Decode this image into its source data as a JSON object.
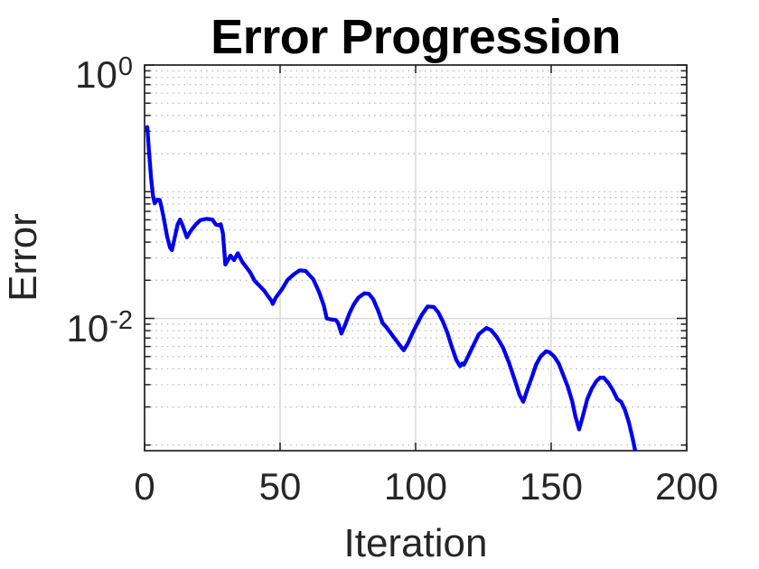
{
  "title": "Error Progression",
  "chart_data": {
    "type": "line",
    "title": "Error Progression",
    "xlabel": "Iteration",
    "ylabel": "Error",
    "yscale": "log",
    "xlim": [
      0,
      200
    ],
    "ylim": [
      0.000903,
      1.0
    ],
    "x_ticks": [
      {
        "value": 0,
        "label": "0"
      },
      {
        "value": 50,
        "label": "50"
      },
      {
        "value": 100,
        "label": "100"
      },
      {
        "value": 150,
        "label": "150"
      },
      {
        "value": 200,
        "label": "200"
      }
    ],
    "y_ticks": [
      {
        "value": 1,
        "base": "10",
        "exponent": "0"
      },
      {
        "value": 0.01,
        "base": "10",
        "exponent": "-2"
      }
    ],
    "x_major_grid": [
      50,
      100,
      150
    ],
    "y_major_grid": [
      0.01
    ],
    "minor_grid": true,
    "legend": null,
    "colors": {
      "line": "#0000EE",
      "axis": "#1f1f1f",
      "major_grid": "#d6d6d6",
      "minor_grid": "#b9b9b9",
      "title_text": "#000000",
      "label_text": "#262626"
    },
    "series": [
      {
        "name": "error",
        "color": "#0000EE",
        "line_width": 4.3,
        "points": [
          [
            1,
            0.324
          ],
          [
            1.7,
            0.2
          ],
          [
            2.4,
            0.129
          ],
          [
            3.1,
            0.093
          ],
          [
            3.7,
            0.081
          ],
          [
            4.7,
            0.0865
          ],
          [
            5.6,
            0.086
          ],
          [
            6.3,
            0.0747
          ],
          [
            7.2,
            0.06
          ],
          [
            8.3,
            0.0444
          ],
          [
            9.4,
            0.0362
          ],
          [
            10.1,
            0.0346
          ],
          [
            11.1,
            0.0433
          ],
          [
            12.2,
            0.0552
          ],
          [
            13.1,
            0.0603
          ],
          [
            14.1,
            0.0536
          ],
          [
            15.6,
            0.0437
          ],
          [
            17.2,
            0.0497
          ],
          [
            18.9,
            0.0552
          ],
          [
            20.6,
            0.0597
          ],
          [
            22.8,
            0.0611
          ],
          [
            25,
            0.0603
          ],
          [
            26.3,
            0.0551
          ],
          [
            27.2,
            0.0543
          ],
          [
            28.1,
            0.0553
          ],
          [
            28.9,
            0.047
          ],
          [
            29.8,
            0.0266
          ],
          [
            31.7,
            0.0313
          ],
          [
            33,
            0.0289
          ],
          [
            34.4,
            0.0327
          ],
          [
            36.1,
            0.0278
          ],
          [
            37.4,
            0.0256
          ],
          [
            38.9,
            0.0232
          ],
          [
            40.6,
            0.0198
          ],
          [
            42.4,
            0.0181
          ],
          [
            44.1,
            0.0166
          ],
          [
            45.6,
            0.0149
          ],
          [
            46.8,
            0.0138
          ],
          [
            47.3,
            0.013
          ],
          [
            48.4,
            0.0146
          ],
          [
            50.6,
            0.0169
          ],
          [
            52.8,
            0.0202
          ],
          [
            55,
            0.0222
          ],
          [
            57.2,
            0.0239
          ],
          [
            59.4,
            0.0237
          ],
          [
            62.2,
            0.0204
          ],
          [
            64.4,
            0.0161
          ],
          [
            66.1,
            0.0127
          ],
          [
            67.2,
            0.01
          ],
          [
            68.9,
            0.0098
          ],
          [
            70.6,
            0.0097
          ],
          [
            71.4,
            0.0092
          ],
          [
            72.6,
            0.0076
          ],
          [
            73.9,
            0.0088
          ],
          [
            75.6,
            0.011
          ],
          [
            77.2,
            0.0129
          ],
          [
            78.9,
            0.0146
          ],
          [
            81.1,
            0.0158
          ],
          [
            82.8,
            0.0156
          ],
          [
            84.4,
            0.0141
          ],
          [
            86.1,
            0.0116
          ],
          [
            87.8,
            0.0092
          ],
          [
            89.4,
            0.0084
          ],
          [
            91.1,
            0.0075
          ],
          [
            92.8,
            0.0067
          ],
          [
            95.6,
            0.0056
          ],
          [
            97.2,
            0.0064
          ],
          [
            98.9,
            0.0077
          ],
          [
            100.6,
            0.0091
          ],
          [
            102.2,
            0.0106
          ],
          [
            104.4,
            0.0124
          ],
          [
            106.7,
            0.0123
          ],
          [
            108.3,
            0.0112
          ],
          [
            110,
            0.0095
          ],
          [
            111.7,
            0.0077
          ],
          [
            113.3,
            0.006
          ],
          [
            115,
            0.0047
          ],
          [
            116.4,
            0.0042
          ],
          [
            117.2,
            0.0044
          ],
          [
            117.8,
            0.0043
          ],
          [
            118.5,
            0.0046
          ],
          [
            121.1,
            0.006
          ],
          [
            123.3,
            0.0075
          ],
          [
            126.1,
            0.0084
          ],
          [
            127.8,
            0.0081
          ],
          [
            130,
            0.0071
          ],
          [
            132.2,
            0.0059
          ],
          [
            134.4,
            0.0045
          ],
          [
            136.7,
            0.0032
          ],
          [
            138.3,
            0.0025
          ],
          [
            139.7,
            0.0022
          ],
          [
            141.1,
            0.0027
          ],
          [
            142.8,
            0.0034
          ],
          [
            144.4,
            0.0043
          ],
          [
            146.1,
            0.005
          ],
          [
            148.1,
            0.0055
          ],
          [
            149.4,
            0.0054
          ],
          [
            151.1,
            0.005
          ],
          [
            152.8,
            0.0044
          ],
          [
            154.4,
            0.0036
          ],
          [
            156.1,
            0.0029
          ],
          [
            157.8,
            0.0022
          ],
          [
            158.9,
            0.0017
          ],
          [
            160.3,
            0.00133
          ],
          [
            161.7,
            0.0017
          ],
          [
            163.3,
            0.0023
          ],
          [
            165,
            0.0028
          ],
          [
            166.7,
            0.0032
          ],
          [
            168,
            0.0034
          ],
          [
            169.4,
            0.0034
          ],
          [
            171.1,
            0.0031
          ],
          [
            172.8,
            0.0027
          ],
          [
            174.4,
            0.0023
          ],
          [
            175.8,
            0.0022
          ],
          [
            177.2,
            0.0019
          ],
          [
            178.7,
            0.0015
          ],
          [
            180,
            0.00114
          ],
          [
            181.2,
            0.00086
          ],
          [
            182,
            0.0007
          ]
        ]
      }
    ]
  }
}
